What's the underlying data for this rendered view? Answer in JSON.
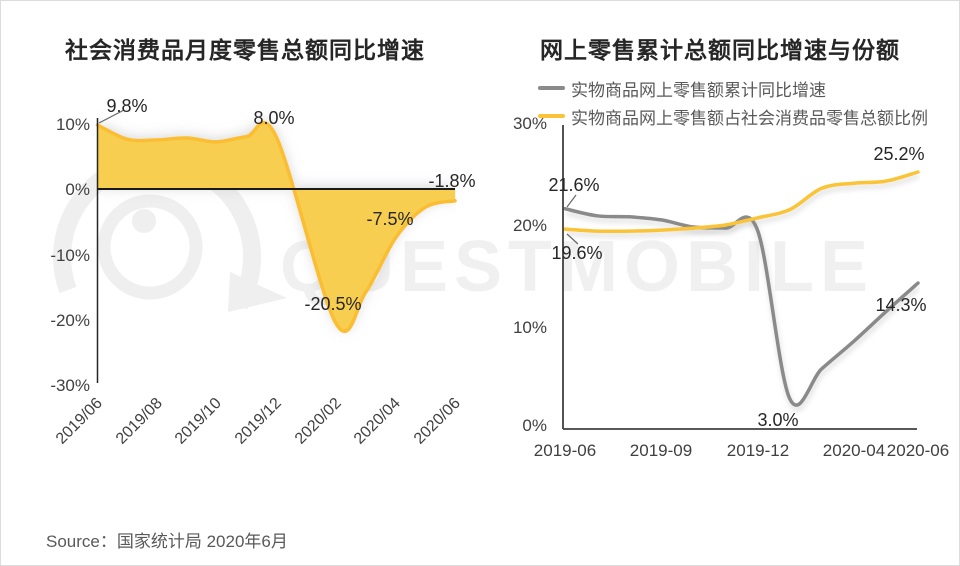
{
  "watermark": {
    "text": "QUESTMOBILE"
  },
  "source": {
    "text": "Source：国家统计局 2020年6月"
  },
  "colors": {
    "yellow_stroke": "#FBBE32",
    "yellow_fill": "#F7CE4F",
    "yellow_line": "#FBC437",
    "gray_line": "#8A8A8A",
    "axis": "#262626",
    "tick_text": "#404040",
    "data_label": "#262626",
    "legend_text": "#595959",
    "watermark_gray": "#EFEFEF"
  },
  "left_chart": {
    "title": "社会消费品月度零售总额同比增速",
    "y_ticks": [
      "10%",
      "0%",
      "-10%",
      "-20%",
      "-30%"
    ],
    "x_ticks": [
      "2019/06",
      "2019/08",
      "2019/10",
      "2019/12",
      "2020/02",
      "2020/04",
      "2020/06"
    ],
    "point_labels": {
      "start": "9.8%",
      "peak": "8.0%",
      "feb": "-20.5%",
      "apr": "-7.5%",
      "end": "-1.8%"
    }
  },
  "right_chart": {
    "title": "网上零售累计总额同比增速与份额",
    "legend": [
      {
        "label": "实物商品网上零售额累计同比增速",
        "color": "#8A8A8A"
      },
      {
        "label": "实物商品网上零售额占社会消费品零售总额比例",
        "color": "#FBC437"
      }
    ],
    "y_ticks": [
      "30%",
      "20%",
      "10%",
      "0%"
    ],
    "x_ticks": [
      "2019-06",
      "2019-09",
      "2019-12",
      "2020-04",
      "2020-06"
    ],
    "point_labels": {
      "gray_start": "21.6%",
      "yellow_start": "19.6%",
      "gray_min": "3.0%",
      "gray_end": "14.3%",
      "yellow_end": "25.2%"
    }
  },
  "chart_data": [
    {
      "type": "area",
      "title": "社会消费品月度零售总额同比增速",
      "categories": [
        "2019/06",
        "2019/07",
        "2019/08",
        "2019/09",
        "2019/10",
        "2019/11",
        "2019/12",
        "2020/02",
        "2020/03",
        "2020/04",
        "2020/05",
        "2020/06"
      ],
      "x_index": [
        0,
        1,
        2,
        3,
        4,
        5,
        6,
        8,
        9,
        10,
        11,
        12
      ],
      "values": [
        9.8,
        7.6,
        7.5,
        7.8,
        7.2,
        8.0,
        8.0,
        -20.5,
        -15.8,
        -7.5,
        -2.8,
        -1.8
      ],
      "labeled_points": {
        "2019/06": 9.8,
        "2019/12": 8.0,
        "2020/02": -20.5,
        "2020/04": -7.5,
        "2020/06": -1.8
      },
      "ylim": [
        -30,
        10
      ],
      "y_tick_values": [
        10,
        0,
        -10,
        -20,
        -30
      ],
      "grid": false,
      "legend_position": "none"
    },
    {
      "type": "line",
      "title": "网上零售累计总额同比增速与份额",
      "categories": [
        "2019-06",
        "2019-07",
        "2019-08",
        "2019-09",
        "2019-10",
        "2019-11",
        "2019-12",
        "2020-02",
        "2020-03",
        "2020-04",
        "2020-05",
        "2020-06"
      ],
      "x_index": [
        0,
        1,
        2,
        3,
        4,
        5,
        6,
        7,
        8,
        9,
        10,
        11
      ],
      "series": [
        {
          "name": "实物商品网上零售额累计同比增速",
          "color": "#8A8A8A",
          "values": [
            21.6,
            20.9,
            20.8,
            20.5,
            19.8,
            19.7,
            19.5,
            3.0,
            5.9,
            8.6,
            11.5,
            14.3
          ]
        },
        {
          "name": "实物商品网上零售额占社会消费品零售总额比例",
          "color": "#FBC437",
          "values": [
            19.6,
            19.4,
            19.4,
            19.5,
            19.7,
            20.0,
            20.7,
            21.5,
            23.6,
            24.1,
            24.3,
            25.2
          ]
        }
      ],
      "labeled_points": {
        "gray_2019-06": 21.6,
        "yellow_2019-06": 19.6,
        "gray_2020-02": 3.0,
        "gray_2020-06": 14.3,
        "yellow_2020-06": 25.2
      },
      "ylim": [
        0,
        30
      ],
      "y_tick_values": [
        30,
        20,
        10,
        0
      ],
      "grid": false,
      "legend_position": "top"
    }
  ]
}
